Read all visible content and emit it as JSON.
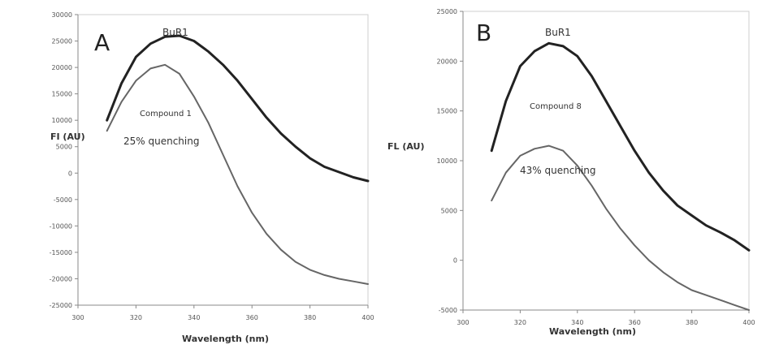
{
  "chart_data": [
    {
      "type": "line",
      "panel_label": "A",
      "xlabel": "Wavelength (nm)",
      "ylabel": "FI (AU)",
      "xlim": [
        300,
        400
      ],
      "ylim": [
        -25000,
        30000
      ],
      "x_ticks": [
        "300",
        "320",
        "340",
        "360",
        "380",
        "400"
      ],
      "y_ticks": [
        "-25000",
        "-20000",
        "-15000",
        "-10000",
        "-5000",
        "0",
        "5000",
        "10000",
        "15000",
        "20000",
        "25000",
        "30000"
      ],
      "series": [
        {
          "name": "BuR1",
          "color": "#222222",
          "x": [
            310,
            315,
            320,
            325,
            330,
            335,
            340,
            345,
            350,
            355,
            360,
            365,
            370,
            375,
            380,
            385,
            390,
            395,
            400
          ],
          "y": [
            10000,
            17000,
            22000,
            24500,
            25800,
            26000,
            25000,
            23000,
            20500,
            17500,
            14000,
            10500,
            7500,
            5000,
            2800,
            1200,
            200,
            -800,
            -1500
          ]
        },
        {
          "name": "Compound 1",
          "color": "#666666",
          "x": [
            310,
            315,
            320,
            325,
            330,
            335,
            340,
            345,
            350,
            355,
            360,
            365,
            370,
            375,
            380,
            385,
            390,
            395,
            400
          ],
          "y": [
            8000,
            13500,
            17500,
            19800,
            20500,
            18800,
            14500,
            9500,
            3500,
            -2500,
            -7500,
            -11500,
            -14500,
            -16800,
            -18300,
            -19300,
            -20000,
            -20500,
            -21000
          ]
        }
      ],
      "annotations": [
        "BuR1",
        "Compound 1",
        "25% quenching"
      ]
    },
    {
      "type": "line",
      "panel_label": "B",
      "xlabel": "Wavelength (nm)",
      "ylabel": "FL (AU)",
      "xlim": [
        300,
        400
      ],
      "ylim": [
        -5000,
        25000
      ],
      "x_ticks": [
        "300",
        "320",
        "340",
        "360",
        "380",
        "400"
      ],
      "y_ticks": [
        "-5000",
        "0",
        "5000",
        "10000",
        "15000",
        "20000",
        "25000"
      ],
      "series": [
        {
          "name": "BuR1",
          "color": "#222222",
          "x": [
            310,
            315,
            320,
            325,
            330,
            335,
            340,
            345,
            350,
            355,
            360,
            365,
            370,
            375,
            380,
            385,
            390,
            395,
            400
          ],
          "y": [
            11000,
            16000,
            19500,
            21000,
            21800,
            21500,
            20500,
            18500,
            16000,
            13500,
            11000,
            8800,
            7000,
            5500,
            4500,
            3500,
            2800,
            2000,
            1000
          ]
        },
        {
          "name": "Compound 8",
          "color": "#666666",
          "x": [
            310,
            315,
            320,
            325,
            330,
            335,
            340,
            345,
            350,
            355,
            360,
            365,
            370,
            375,
            380,
            385,
            390,
            395,
            400
          ],
          "y": [
            6000,
            8800,
            10500,
            11200,
            11500,
            11000,
            9500,
            7500,
            5200,
            3200,
            1500,
            0,
            -1200,
            -2200,
            -3000,
            -3500,
            -4000,
            -4500,
            -5000
          ]
        }
      ],
      "annotations": [
        "BuR1",
        "Compound 8",
        "43% quenching"
      ]
    }
  ]
}
